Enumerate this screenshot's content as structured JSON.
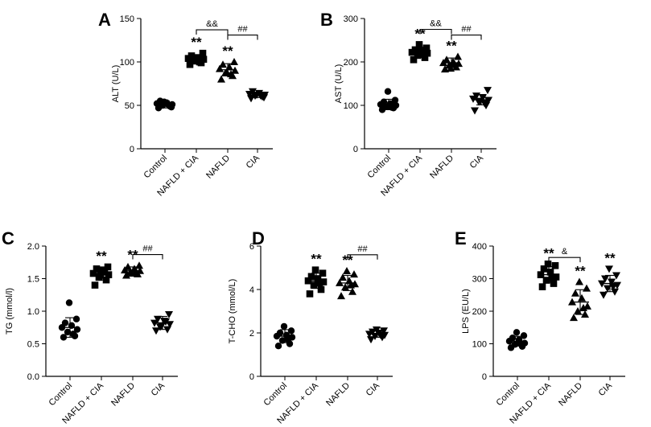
{
  "chart_data": [
    {
      "type": "scatter",
      "panel": "A",
      "ylabel": "ALT (U/L)",
      "ylim": [
        0,
        150
      ],
      "yticks": [
        0,
        50,
        100,
        150
      ],
      "categories": [
        "Control",
        "NAFLD + CIA",
        "NAFLD",
        "CIA"
      ],
      "markers": [
        "circle",
        "square",
        "triangle-up",
        "triangle-down"
      ],
      "groups": [
        {
          "name": "Control",
          "mean": 51,
          "sd": 4,
          "values": [
            47,
            49,
            50,
            51,
            52,
            53,
            55,
            48,
            54,
            51
          ],
          "sig": ""
        },
        {
          "name": "NAFLD + CIA",
          "mean": 103,
          "sd": 5,
          "values": [
            97,
            99,
            101,
            103,
            104,
            105,
            107,
            110,
            102,
            100
          ],
          "sig": "**"
        },
        {
          "name": "NAFLD",
          "mean": 91,
          "sd": 7,
          "values": [
            80,
            84,
            87,
            90,
            92,
            94,
            97,
            100,
            88,
            86
          ],
          "sig": "**"
        },
        {
          "name": "CIA",
          "mean": 62,
          "sd": 3,
          "values": [
            58,
            60,
            61,
            62,
            63,
            64,
            66,
            59,
            62,
            61
          ],
          "sig": ""
        }
      ],
      "comparisons": [
        {
          "from": 1,
          "to": 2,
          "label": "&&",
          "y": 137
        },
        {
          "from": 2,
          "to": 3,
          "label": "##",
          "y": 131
        }
      ]
    },
    {
      "type": "scatter",
      "panel": "B",
      "ylabel": "AST (U/L)",
      "ylim": [
        0,
        300
      ],
      "yticks": [
        0,
        100,
        200,
        300
      ],
      "categories": [
        "Control",
        "NAFLD + CIA",
        "NAFLD",
        "CIA"
      ],
      "markers": [
        "circle",
        "square",
        "triangle-up",
        "triangle-down"
      ],
      "groups": [
        {
          "name": "Control",
          "mean": 102,
          "sd": 12,
          "values": [
            90,
            94,
            97,
            100,
            102,
            104,
            108,
            112,
            132,
            95
          ],
          "sig": ""
        },
        {
          "name": "NAFLD + CIA",
          "mean": 222,
          "sd": 12,
          "values": [
            205,
            210,
            215,
            220,
            222,
            225,
            228,
            232,
            240,
            218
          ],
          "sig": "**"
        },
        {
          "name": "NAFLD",
          "mean": 198,
          "sd": 11,
          "values": [
            183,
            188,
            192,
            196,
            198,
            200,
            205,
            212,
            185,
            195
          ],
          "sig": "**"
        },
        {
          "name": "CIA",
          "mean": 113,
          "sd": 12,
          "values": [
            88,
            100,
            108,
            112,
            115,
            118,
            122,
            135,
            110,
            105
          ],
          "sig": ""
        }
      ],
      "comparisons": [
        {
          "from": 1,
          "to": 2,
          "label": "&&",
          "y": 275
        },
        {
          "from": 2,
          "to": 3,
          "label": "##",
          "y": 262
        }
      ]
    },
    {
      "type": "scatter",
      "panel": "C",
      "ylabel": "TG (mmol/l)",
      "ylim": [
        0,
        2.0
      ],
      "yticks": [
        "0.0",
        "0.5",
        "1.0",
        "1.5",
        "2.0"
      ],
      "categories": [
        "Control",
        "NAFLD + CIA",
        "NAFLD",
        "CIA"
      ],
      "markers": [
        "circle",
        "square",
        "triangle-up",
        "triangle-down"
      ],
      "groups": [
        {
          "name": "Control",
          "mean": 0.75,
          "sd": 0.15,
          "values": [
            0.6,
            0.62,
            0.68,
            0.72,
            0.75,
            0.78,
            0.82,
            0.88,
            1.13,
            0.65
          ],
          "sig": ""
        },
        {
          "name": "NAFLD + CIA",
          "mean": 1.58,
          "sd": 0.1,
          "values": [
            1.4,
            1.48,
            1.52,
            1.56,
            1.58,
            1.62,
            1.65,
            1.68,
            1.55,
            1.6
          ],
          "sig": "**"
        },
        {
          "name": "NAFLD",
          "mean": 1.62,
          "sd": 0.06,
          "values": [
            1.55,
            1.57,
            1.6,
            1.62,
            1.63,
            1.65,
            1.68,
            1.7,
            1.58,
            1.61
          ],
          "sig": "**"
        },
        {
          "name": "CIA",
          "mean": 0.82,
          "sd": 0.1,
          "values": [
            0.7,
            0.72,
            0.76,
            0.8,
            0.82,
            0.85,
            0.88,
            0.95,
            0.78,
            0.84
          ],
          "sig": ""
        }
      ],
      "comparisons": [
        {
          "from": 2,
          "to": 3,
          "label": "##",
          "y": 1.87
        }
      ]
    },
    {
      "type": "scatter",
      "panel": "D",
      "ylabel": "T-CHO (mmol/L)",
      "ylim": [
        0,
        6
      ],
      "yticks": [
        0,
        2,
        4,
        6
      ],
      "categories": [
        "Control",
        "NAFLD + CIA",
        "NAFLD",
        "CIA"
      ],
      "markers": [
        "circle",
        "square",
        "triangle-up",
        "triangle-down"
      ],
      "groups": [
        {
          "name": "Control",
          "mean": 1.85,
          "sd": 0.3,
          "values": [
            1.4,
            1.5,
            1.65,
            1.8,
            1.85,
            1.9,
            2.0,
            2.1,
            2.3,
            1.7
          ],
          "sig": ""
        },
        {
          "name": "NAFLD + CIA",
          "mean": 4.4,
          "sd": 0.35,
          "values": [
            3.8,
            4.0,
            4.2,
            4.35,
            4.4,
            4.5,
            4.6,
            4.75,
            4.9,
            4.3
          ],
          "sig": "**"
        },
        {
          "name": "NAFLD",
          "mean": 4.3,
          "sd": 0.35,
          "values": [
            3.7,
            3.9,
            4.1,
            4.25,
            4.3,
            4.4,
            4.55,
            4.7,
            4.85,
            4.2
          ],
          "sig": "**"
        },
        {
          "name": "CIA",
          "mean": 1.95,
          "sd": 0.15,
          "values": [
            1.7,
            1.8,
            1.85,
            1.9,
            1.95,
            2.0,
            2.05,
            2.1,
            2.15,
            1.9
          ],
          "sig": ""
        }
      ],
      "comparisons": [
        {
          "from": 2,
          "to": 3,
          "label": "##",
          "y": 5.6
        }
      ]
    },
    {
      "type": "scatter",
      "panel": "E",
      "ylabel": "LPS (EU/L)",
      "ylim": [
        0,
        400
      ],
      "yticks": [
        0,
        100,
        200,
        300,
        400
      ],
      "categories": [
        "Control",
        "NAFLD + CIA",
        "NAFLD",
        "CIA"
      ],
      "markers": [
        "circle",
        "square",
        "triangle-up",
        "triangle-down"
      ],
      "groups": [
        {
          "name": "Control",
          "mean": 108,
          "sd": 15,
          "values": [
            88,
            92,
            98,
            102,
            108,
            112,
            118,
            125,
            135,
            100
          ],
          "sig": ""
        },
        {
          "name": "NAFLD + CIA",
          "mean": 312,
          "sd": 25,
          "values": [
            275,
            285,
            295,
            305,
            312,
            320,
            330,
            340,
            345,
            300
          ],
          "sig": "**"
        },
        {
          "name": "NAFLD",
          "mean": 228,
          "sd": 38,
          "values": [
            180,
            190,
            200,
            215,
            228,
            240,
            255,
            270,
            290,
            210
          ],
          "sig": "**"
        },
        {
          "name": "CIA",
          "mean": 285,
          "sd": 25,
          "values": [
            250,
            260,
            270,
            280,
            285,
            290,
            300,
            310,
            330,
            275
          ],
          "sig": "**"
        }
      ],
      "comparisons": [
        {
          "from": 1,
          "to": 2,
          "label": "&",
          "y": 365
        }
      ]
    }
  ]
}
